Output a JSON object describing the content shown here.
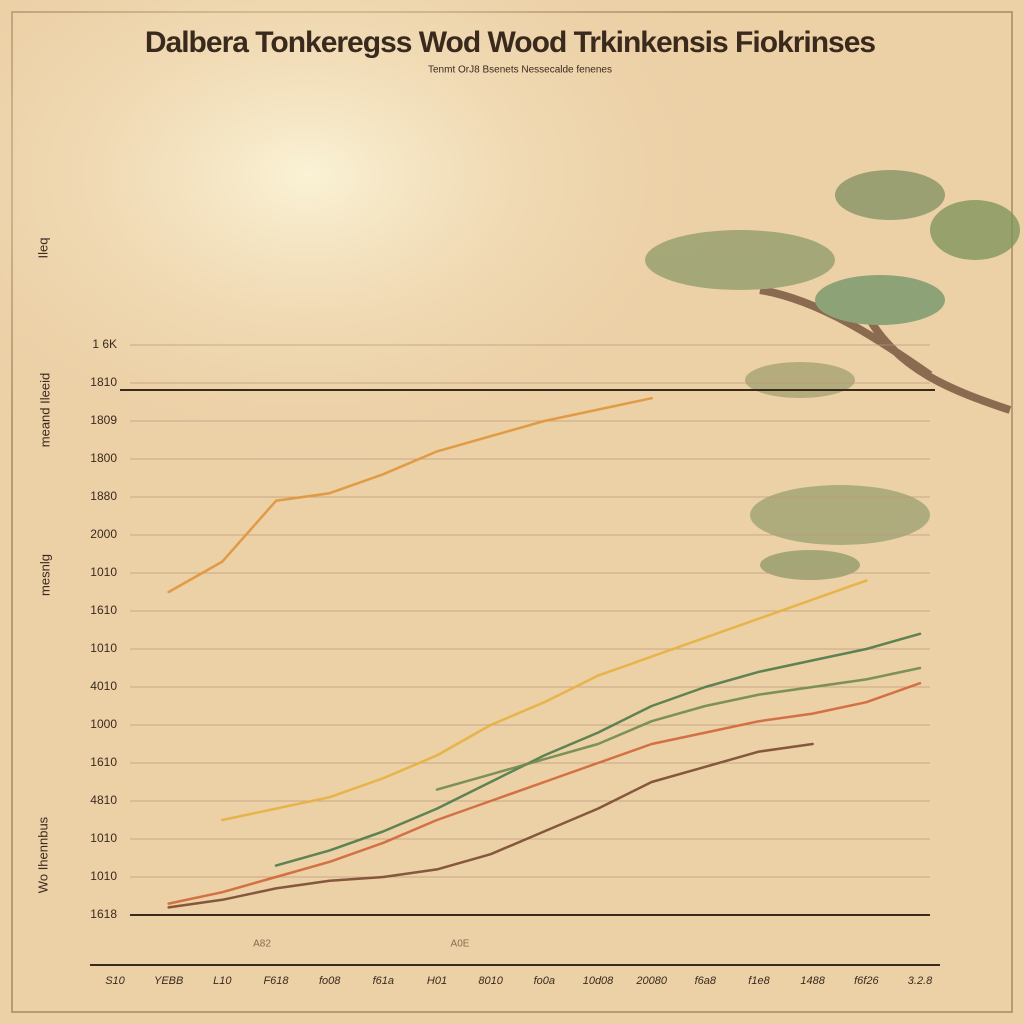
{
  "chart_data": {
    "type": "line",
    "title": "Dalbera Tonkeregss Wod Wood Trkinkensis Fiokrinses",
    "subtitle": "Tenmt OrJ8 Bsenets Nessecalde fenenes",
    "annotations": [
      "Ileq",
      "meand Ileeid",
      "mesnlg",
      "Wo Ihennbus",
      "A82",
      "A0E"
    ],
    "categories": [
      "S10",
      "YEBB",
      "L10",
      "F618",
      "fo08",
      "f61a",
      "H01",
      "8010",
      "fo0a",
      "10d08",
      "20080",
      "f6a8",
      "f1e8",
      "1488",
      "f6f26",
      "3.2.8"
    ],
    "ylim": [
      0,
      15
    ],
    "yticks": [
      {
        "value": 0,
        "label": "1618"
      },
      {
        "value": 1,
        "label": "1010"
      },
      {
        "value": 2,
        "label": "1010"
      },
      {
        "value": 3,
        "label": "4810"
      },
      {
        "value": 4,
        "label": "1610"
      },
      {
        "value": 5,
        "label": "1000"
      },
      {
        "value": 6,
        "label": "4010"
      },
      {
        "value": 7,
        "label": "1010"
      },
      {
        "value": 8,
        "label": "1610"
      },
      {
        "value": 9,
        "label": "1010"
      },
      {
        "value": 10,
        "label": "2000"
      },
      {
        "value": 11,
        "label": "1880"
      },
      {
        "value": 12,
        "label": "1800"
      },
      {
        "value": 13,
        "label": "1809"
      },
      {
        "value": 14,
        "label": "1810"
      },
      {
        "value": 15,
        "label": "1 6K"
      }
    ],
    "grid": true,
    "series": [
      {
        "color": "#e0953a",
        "values": [
          null,
          8.5,
          9.3,
          10.9,
          11.1,
          11.6,
          12.2,
          12.6,
          13.0,
          13.3,
          13.6,
          null,
          null,
          null,
          null,
          null
        ]
      },
      {
        "color": "#e8b040",
        "values": [
          null,
          null,
          2.5,
          2.8,
          3.1,
          3.6,
          4.2,
          5.0,
          5.6,
          6.3,
          6.8,
          7.3,
          7.8,
          8.3,
          8.8,
          null
        ]
      },
      {
        "color": "#4f7a4a",
        "values": [
          null,
          null,
          null,
          1.3,
          1.7,
          2.2,
          2.8,
          3.5,
          4.2,
          4.8,
          5.5,
          6.0,
          6.4,
          6.7,
          7.0,
          7.4
        ]
      },
      {
        "color": "#6f8a50",
        "values": [
          null,
          null,
          null,
          null,
          null,
          null,
          3.3,
          3.7,
          4.1,
          4.5,
          5.1,
          5.5,
          5.8,
          6.0,
          6.2,
          6.5
        ]
      },
      {
        "color": "#d0663a",
        "values": [
          null,
          0.3,
          0.6,
          1.0,
          1.4,
          1.9,
          2.5,
          3.0,
          3.5,
          4.0,
          4.5,
          4.8,
          5.1,
          5.3,
          5.6,
          6.1
        ]
      },
      {
        "color": "#7a4a32",
        "values": [
          null,
          0.2,
          0.4,
          0.7,
          0.9,
          1.0,
          1.2,
          1.6,
          2.2,
          2.8,
          3.5,
          3.9,
          4.3,
          4.5,
          null,
          null
        ]
      }
    ]
  }
}
